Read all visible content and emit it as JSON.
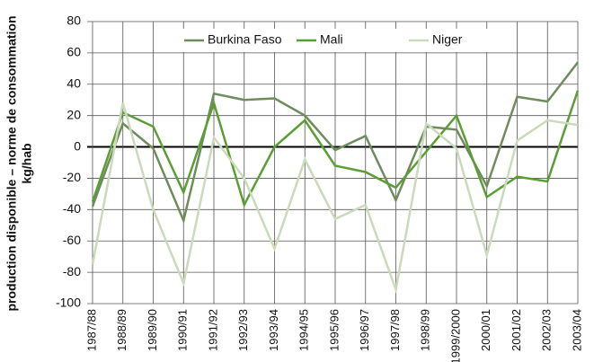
{
  "chart_data": {
    "type": "line",
    "ylabel": "production disponible – norme de consommation",
    "ylabel_unit": "kg/hab",
    "categories": [
      "1987/88",
      "1988/89",
      "1989/90",
      "1990/91",
      "1991/92",
      "1992/93",
      "1993/94",
      "1994/95",
      "1995/96",
      "1996/97",
      "1997/98",
      "1998/99",
      "1999/2000",
      "2000/01",
      "2001/02",
      "2002/03",
      "2003/04"
    ],
    "series": [
      {
        "name": "Burkina Faso",
        "color": "#6e8c5c",
        "values": [
          -38,
          15,
          -1,
          -47,
          34,
          30,
          31,
          20,
          -2,
          7,
          -34,
          13,
          11,
          -25,
          32,
          29,
          54
        ]
      },
      {
        "name": "Mali",
        "color": "#5a9e35",
        "values": [
          -35,
          22,
          13,
          -29,
          28,
          -37,
          0,
          17,
          -12,
          -16,
          -26,
          -3,
          20,
          -32,
          -19,
          -22,
          36
        ]
      },
      {
        "name": "Niger",
        "color": "#c9dbba",
        "values": [
          -75,
          28,
          -40,
          -87,
          6,
          -20,
          -65,
          -8,
          -46,
          -37,
          -91,
          15,
          -1,
          -69,
          4,
          17,
          14
        ]
      }
    ],
    "ylim": [
      -100,
      80
    ],
    "yticks": [
      -100,
      -80,
      -60,
      -40,
      -20,
      0,
      20,
      40,
      60,
      80
    ],
    "grid": true,
    "legend": "top"
  }
}
